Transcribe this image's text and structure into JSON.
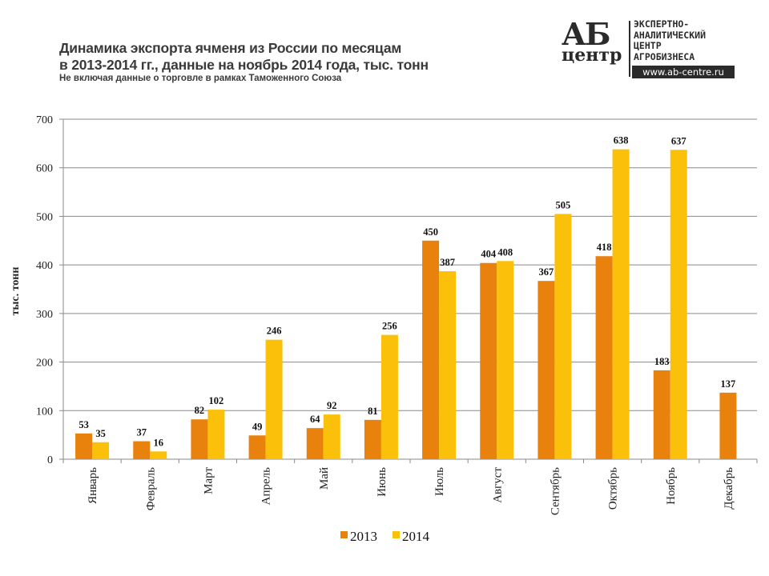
{
  "header": {
    "title_line1": "Динамика экспорта ячменя из России по месяцам",
    "title_line2": "в 2013-2014 гг., данные на ноябрь 2014 года, тыс. тонн",
    "subtitle": "Не включая данные о торговле  в рамках Таможенного Союза"
  },
  "logo": {
    "mark_top": "АБ",
    "mark_bottom": "центр",
    "lines": [
      "ЭКСПЕРТНО-",
      "АНАЛИТИЧЕСКИЙ",
      "ЦЕНТР",
      "АГРОБИЗНЕСА"
    ],
    "url": "www.ab-centre.ru"
  },
  "chart_data": {
    "type": "bar",
    "title": "Динамика экспорта ячменя из России по месяцам в 2013-2014 гг., данные на ноябрь 2014 года, тыс. тонн",
    "subtitle": "Не включая данные о торговле  в рамках Таможенного Союза",
    "xlabel": "",
    "ylabel": "тыс. тонн",
    "ylim": [
      0,
      700
    ],
    "yticks": [
      0,
      100,
      200,
      300,
      400,
      500,
      600,
      700
    ],
    "grid": true,
    "legend_position": "bottom",
    "categories": [
      "Январь",
      "Февраль",
      "Март",
      "Апрель",
      "Май",
      "Июнь",
      "Июль",
      "Август",
      "Сентябрь",
      "Октябрь",
      "Ноябрь",
      "Декабрь"
    ],
    "series": [
      {
        "name": "2013",
        "color": "#E8820C",
        "values": [
          53,
          37,
          82,
          49,
          64,
          81,
          450,
          404,
          367,
          418,
          183,
          137
        ]
      },
      {
        "name": "2014",
        "color": "#FBC10A",
        "values": [
          35,
          16,
          102,
          246,
          92,
          256,
          387,
          408,
          505,
          638,
          637,
          null
        ]
      }
    ]
  }
}
